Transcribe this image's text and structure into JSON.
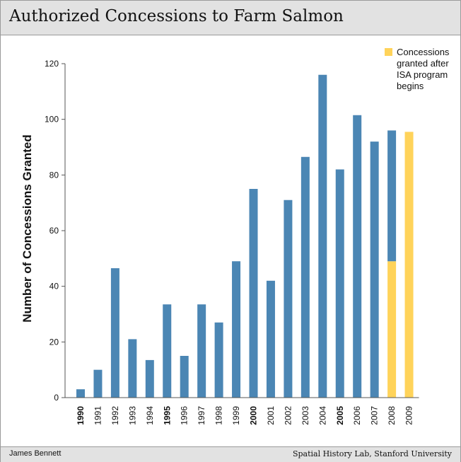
{
  "title": "Authorized Concessions to Farm Salmon",
  "footer": {
    "left": "James Bennett",
    "right": "Spatial History Lab, Stanford University"
  },
  "colors": {
    "blue": "#4b86b4",
    "yellow": "#ffd35a"
  },
  "chart_data": {
    "type": "bar",
    "ylabel": "Number of Concessions Granted",
    "xlabel": "",
    "ylim": [
      0,
      120
    ],
    "yticks": [
      0,
      20,
      40,
      60,
      80,
      100,
      120
    ],
    "grid": false,
    "categories": [
      "1990",
      "1991",
      "1992",
      "1993",
      "1994",
      "1995",
      "1996",
      "1997",
      "1998",
      "1999",
      "2000",
      "2001",
      "2002",
      "2003",
      "2004",
      "2005",
      "2006",
      "2007",
      "2008",
      "2009"
    ],
    "bold_categories": [
      "1990",
      "1995",
      "2000",
      "2005"
    ],
    "series": [
      {
        "values": [
          3,
          10,
          46.5,
          21,
          13.5,
          33.5,
          15,
          33.5,
          27,
          49,
          75,
          42,
          71,
          86.5,
          116,
          82,
          101.5,
          92,
          47,
          0
        ]
      },
      {
        "name": "Concessions granted after ISA program begins",
        "values": [
          0,
          0,
          0,
          0,
          0,
          0,
          0,
          0,
          0,
          0,
          0,
          0,
          0,
          0,
          0,
          0,
          0,
          0,
          49,
          95.5
        ]
      }
    ],
    "legend": {
      "position": "top-right",
      "lines": [
        "Concessions",
        "granted after",
        "ISA program",
        "begins"
      ]
    }
  }
}
